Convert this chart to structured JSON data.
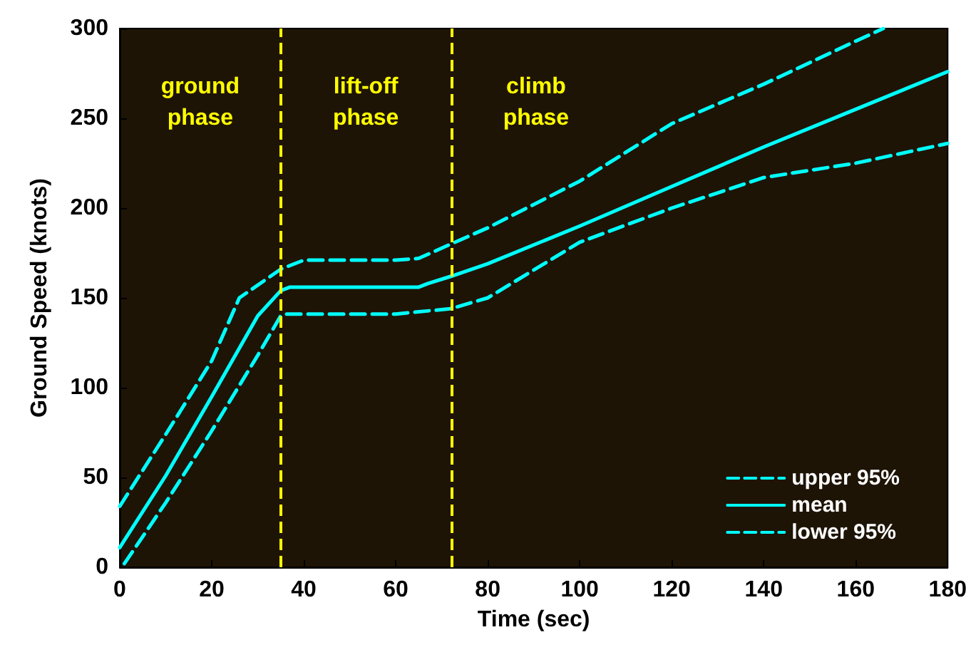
{
  "chart_data": {
    "type": "line",
    "xlabel": "Time (sec)",
    "ylabel": "Ground Speed (knots)",
    "xlim": [
      0,
      180
    ],
    "xticks": [
      0,
      20,
      40,
      60,
      80,
      100,
      120,
      140,
      160,
      180
    ],
    "ylim": [
      0,
      300
    ],
    "yticks": [
      0,
      50,
      100,
      150,
      200,
      250,
      300
    ],
    "grid": false,
    "legend": "bottom right",
    "marker": "none",
    "series": [
      {
        "name": "upper 95%",
        "color": "#00ffff",
        "line_style": "dashed",
        "x": [
          0,
          10,
          20,
          26,
          35,
          40,
          60,
          65,
          72,
          80,
          100,
          120,
          140,
          160,
          166
        ],
        "values": [
          34,
          74,
          115,
          150,
          166,
          171,
          171,
          172,
          180,
          189,
          215,
          247,
          269,
          293,
          300
        ]
      },
      {
        "name": "mean",
        "color": "#00ffff",
        "line_style": "solid",
        "x": [
          0,
          10,
          20,
          30,
          35,
          37,
          65,
          67,
          72,
          80,
          100,
          120,
          140,
          160,
          180
        ],
        "values": [
          11,
          51,
          95,
          140,
          154,
          156,
          156,
          158,
          162,
          169,
          190,
          212,
          234,
          255,
          276
        ]
      },
      {
        "name": "lower 95%",
        "color": "#00ffff",
        "line_style": "dashed",
        "x": [
          1,
          10,
          20,
          30,
          35,
          36,
          60,
          72,
          80,
          100,
          120,
          140,
          160,
          180
        ],
        "values": [
          2,
          36,
          76,
          118,
          140,
          141,
          141,
          144,
          150,
          181,
          200,
          217,
          225,
          236
        ]
      }
    ],
    "ref_lines": [
      {
        "axis": "x",
        "value": 35,
        "color": "#ffff00",
        "line_style": "dashed"
      },
      {
        "axis": "x",
        "value": 72,
        "color": "#ffff00",
        "line_style": "dashed"
      }
    ],
    "annotations": [
      "ground\nphase",
      "lift-off\nphase",
      "climb\nphase"
    ]
  }
}
